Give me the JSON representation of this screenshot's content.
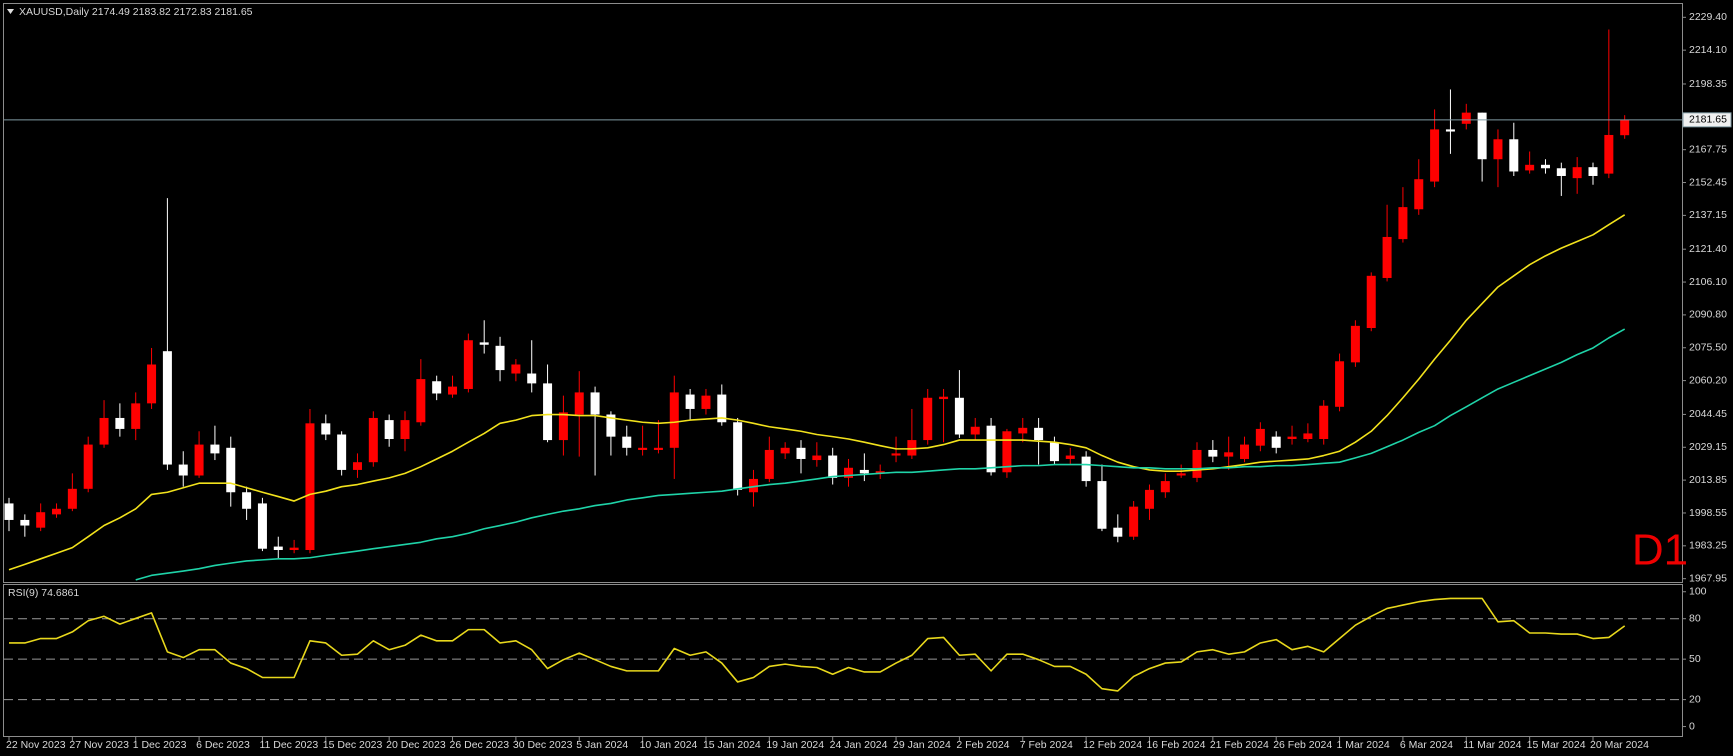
{
  "chart_data": [
    {
      "type": "candlestick",
      "title": "XAUUSD,Daily 2174.49 2183.82 2172.83 2181.65",
      "watermark": "D1",
      "categories": [
        "22 Nov 2023",
        null,
        null,
        null,
        "27 Nov 2023",
        null,
        null,
        null,
        "1 Dec 2023",
        null,
        null,
        null,
        "6 Dec 2023",
        null,
        null,
        null,
        "11 Dec 2023",
        null,
        null,
        null,
        "15 Dec 2023",
        null,
        null,
        null,
        "20 Dec 2023",
        null,
        null,
        null,
        "26 Dec 2023",
        null,
        null,
        null,
        "30 Dec 2023",
        null,
        null,
        null,
        "5 Jan 2024",
        null,
        null,
        null,
        "10 Jan 2024",
        null,
        null,
        null,
        "15 Jan 2024",
        null,
        null,
        null,
        "19 Jan 2024",
        null,
        null,
        null,
        "24 Jan 2024",
        null,
        null,
        null,
        "29 Jan 2024",
        null,
        null,
        null,
        "2 Feb 2024",
        null,
        null,
        null,
        "7 Feb 2024",
        null,
        null,
        null,
        "12 Feb 2024",
        null,
        null,
        null,
        "16 Feb 2024",
        null,
        null,
        null,
        "21 Feb 2024",
        null,
        null,
        null,
        "26 Feb 2024",
        null,
        null,
        null,
        "1 Mar 2024",
        null,
        null,
        null,
        "6 Mar 2024",
        null,
        null,
        null,
        "11 Mar 2024",
        null,
        null,
        null,
        "15 Mar 2024",
        null,
        null,
        null,
        "20 Mar 2024",
        null,
        null
      ],
      "open": [
        2003.0,
        1995.3,
        1991.7,
        1997.9,
        2000.5,
        2009.8,
        2030.4,
        2042.8,
        2037.7,
        2049.6,
        2073.9,
        2021.1,
        2016.0,
        2030.4,
        2028.9,
        2008.2,
        2003.0,
        1982.9,
        1981.3,
        1981.3,
        2040.3,
        2035.1,
        2018.6,
        2022.2,
        2041.8,
        2033.0,
        2040.8,
        2059.9,
        2053.7,
        2056.3,
        2078.0,
        2076.4,
        2063.5,
        2063.5,
        2058.9,
        2032.5,
        2044.4,
        2054.7,
        2044.4,
        2034.1,
        2027.9,
        2027.9,
        2028.9,
        2053.7,
        2047.0,
        2053.7,
        2040.8,
        2008.2,
        2014.4,
        2026.3,
        2028.9,
        2023.2,
        2025.3,
        2014.9,
        2018.6,
        2017.0,
        2025.3,
        2025.3,
        2032.5,
        2051.6,
        2052.2,
        2035.1,
        2039.2,
        2017.5,
        2035.6,
        2038.2,
        2031.5,
        2023.7,
        2024.8,
        2013.4,
        1991.7,
        1987.5,
        2000.5,
        2008.2,
        2016.0,
        2014.9,
        2027.9,
        2024.8,
        2023.7,
        2029.9,
        2034.1,
        2033.0,
        2033.0,
        2033.0,
        2048.0,
        2068.7,
        2084.7,
        2108.0,
        2126.1,
        2140.0,
        2152.9,
        2177.2,
        2179.8,
        2185.0,
        2163.3,
        2172.6,
        2158.1,
        2160.7,
        2159.1,
        2154.5,
        2159.6,
        2156.6,
        2174.49
      ],
      "high": [
        2005.6,
        1997.9,
        2003.0,
        2003.0,
        2017.0,
        2034.1,
        2051.1,
        2049.6,
        2054.7,
        2075.4,
        2145.2,
        2027.3,
        2036.6,
        2039.2,
        2034.1,
        2010.8,
        2005.6,
        1987.5,
        1986.0,
        2047.0,
        2044.4,
        2036.6,
        2026.3,
        2045.9,
        2044.4,
        2045.9,
        2070.2,
        2062.5,
        2062.5,
        2082.1,
        2088.3,
        2080.6,
        2070.2,
        2079.0,
        2067.7,
        2053.2,
        2064.6,
        2057.4,
        2045.9,
        2039.2,
        2039.2,
        2041.8,
        2062.5,
        2056.3,
        2056.3,
        2058.4,
        2042.8,
        2018.6,
        2034.1,
        2031.5,
        2032.5,
        2031.5,
        2028.9,
        2023.7,
        2026.3,
        2021.1,
        2034.1,
        2047.0,
        2056.3,
        2056.3,
        2065.1,
        2042.8,
        2042.8,
        2037.7,
        2042.8,
        2042.8,
        2034.1,
        2028.9,
        2027.3,
        2021.1,
        1997.9,
        2004.1,
        2011.8,
        2017.0,
        2021.1,
        2031.5,
        2032.5,
        2034.1,
        2034.1,
        2040.8,
        2036.6,
        2039.2,
        2040.3,
        2051.1,
        2072.8,
        2088.3,
        2110.6,
        2142.1,
        2150.3,
        2163.3,
        2186.5,
        2195.8,
        2189.1,
        2185.0,
        2177.2,
        2180.3,
        2166.9,
        2163.3,
        2161.7,
        2164.3,
        2161.7,
        2223.7,
        2183.82
      ],
      "low": [
        1990.1,
        1987.5,
        1990.1,
        1996.3,
        1999.4,
        2008.2,
        2028.9,
        2034.1,
        2032.5,
        2047.0,
        2018.6,
        2010.8,
        2014.9,
        2023.2,
        2001.5,
        1995.3,
        1980.8,
        1977.2,
        1979.8,
        1979.8,
        2032.5,
        2016.0,
        2014.9,
        2020.1,
        2029.4,
        2027.3,
        2039.2,
        2051.1,
        2052.2,
        2054.7,
        2072.8,
        2059.9,
        2059.9,
        2054.7,
        2031.5,
        2025.3,
        2024.8,
        2016.0,
        2025.3,
        2025.3,
        2025.3,
        2026.3,
        2014.4,
        2041.8,
        2044.4,
        2039.2,
        2006.7,
        2001.5,
        2012.9,
        2023.7,
        2017.0,
        2020.1,
        2011.8,
        2010.8,
        2013.4,
        2014.4,
        2022.2,
        2023.7,
        2030.4,
        2031.5,
        2033.5,
        2032.5,
        2016.0,
        2014.9,
        2031.5,
        2021.1,
        2021.1,
        2021.1,
        2010.8,
        1990.1,
        1984.9,
        1986.0,
        1995.3,
        2005.6,
        2014.9,
        2012.9,
        2022.2,
        2018.6,
        2022.2,
        2027.3,
        2026.3,
        2030.4,
        2031.5,
        2030.4,
        2045.9,
        2066.6,
        2083.2,
        2106.4,
        2124.5,
        2137.4,
        2150.3,
        2165.8,
        2177.2,
        2152.9,
        2150.3,
        2155.5,
        2156.6,
        2156.6,
        2146.2,
        2147.2,
        2151.4,
        2154.5,
        2172.83
      ],
      "close": [
        1995.3,
        1992.7,
        1998.9,
        2000.5,
        2009.8,
        2030.4,
        2042.8,
        2037.7,
        2049.6,
        2067.7,
        2021.1,
        2016.0,
        2030.4,
        2026.3,
        2008.2,
        2000.5,
        1981.9,
        1981.3,
        1982.4,
        2040.3,
        2035.1,
        2018.6,
        2022.2,
        2042.8,
        2033.0,
        2041.8,
        2060.9,
        2054.2,
        2057.4,
        2079.0,
        2076.9,
        2065.1,
        2067.7,
        2058.9,
        2032.5,
        2045.4,
        2054.7,
        2044.4,
        2034.1,
        2028.9,
        2028.9,
        2028.9,
        2054.7,
        2047.0,
        2053.2,
        2040.8,
        2009.3,
        2014.4,
        2027.9,
        2028.9,
        2023.7,
        2025.3,
        2014.9,
        2019.6,
        2017.0,
        2018.0,
        2026.3,
        2032.5,
        2052.2,
        2052.7,
        2035.1,
        2038.7,
        2017.5,
        2036.6,
        2038.2,
        2032.5,
        2022.7,
        2025.3,
        2013.4,
        1991.2,
        1987.5,
        2001.5,
        2009.3,
        2013.4,
        2017.0,
        2027.9,
        2024.8,
        2026.8,
        2030.4,
        2037.7,
        2028.9,
        2034.1,
        2035.6,
        2048.5,
        2069.2,
        2085.7,
        2109.0,
        2127.1,
        2141.0,
        2154.0,
        2177.2,
        2176.2,
        2185.0,
        2163.3,
        2172.6,
        2157.6,
        2160.7,
        2159.1,
        2155.5,
        2159.6,
        2155.5,
        2174.6,
        2181.65
      ],
      "up_color": "#ff0000",
      "down_color": "#ffffff",
      "series": [
        {
          "color": "#f2e21c",
          "values": [
            1972.1,
            1974.6,
            1977.2,
            1979.8,
            1982.4,
            1987.5,
            1992.7,
            1996.3,
            2000.5,
            2007.2,
            2008.2,
            2010.3,
            2012.4,
            2012.4,
            2012.4,
            2010.3,
            2008.2,
            2006.2,
            2004.1,
            2007.2,
            2008.7,
            2010.8,
            2011.8,
            2013.4,
            2014.9,
            2017.0,
            2020.1,
            2023.7,
            2027.3,
            2031.5,
            2035.6,
            2040.3,
            2041.8,
            2043.9,
            2044.4,
            2044.4,
            2043.9,
            2043.9,
            2042.8,
            2041.8,
            2040.8,
            2040.3,
            2040.8,
            2041.8,
            2042.3,
            2042.8,
            2041.8,
            2040.3,
            2038.7,
            2037.7,
            2036.6,
            2035.1,
            2034.1,
            2033.0,
            2031.5,
            2029.9,
            2028.4,
            2028.4,
            2028.9,
            2030.4,
            2032.5,
            2032.5,
            2032.5,
            2032.5,
            2032.5,
            2032.0,
            2031.5,
            2030.4,
            2028.9,
            2025.3,
            2022.2,
            2020.1,
            2018.6,
            2018.0,
            2018.0,
            2018.6,
            2019.1,
            2020.1,
            2021.1,
            2022.2,
            2022.7,
            2023.2,
            2023.7,
            2025.3,
            2027.3,
            2031.5,
            2036.6,
            2043.9,
            2052.2,
            2060.9,
            2070.2,
            2079.0,
            2088.3,
            2096.1,
            2103.8,
            2109.0,
            2114.2,
            2118.3,
            2121.9,
            2125.0,
            2128.1,
            2132.8,
            2137.4
          ]
        },
        {
          "color": "#1fd3a8",
          "values": [
            null,
            null,
            null,
            null,
            null,
            null,
            null,
            null,
            1967.4,
            1969.5,
            1970.5,
            1971.5,
            1972.6,
            1974.1,
            1975.2,
            1976.2,
            1976.7,
            1977.2,
            1977.2,
            1977.7,
            1978.8,
            1979.8,
            1980.8,
            1981.9,
            1982.9,
            1983.9,
            1984.9,
            1986.5,
            1987.5,
            1989.1,
            1991.2,
            1992.7,
            1994.3,
            1996.3,
            1997.9,
            1999.4,
            2000.5,
            2002.0,
            2003.0,
            2004.6,
            2005.6,
            2006.7,
            2007.2,
            2007.7,
            2008.2,
            2008.7,
            2009.8,
            2010.8,
            2011.8,
            2012.4,
            2013.4,
            2014.4,
            2015.5,
            2016.0,
            2016.5,
            2017.0,
            2017.5,
            2017.5,
            2018.0,
            2018.6,
            2019.1,
            2019.1,
            2019.6,
            2020.1,
            2020.6,
            2020.6,
            2021.1,
            2021.1,
            2021.1,
            2020.6,
            2020.1,
            2019.6,
            2019.6,
            2019.1,
            2019.1,
            2019.1,
            2019.6,
            2019.6,
            2020.1,
            2020.1,
            2020.6,
            2020.6,
            2021.1,
            2021.7,
            2022.2,
            2024.2,
            2026.3,
            2029.4,
            2032.5,
            2036.1,
            2039.2,
            2043.9,
            2048.0,
            2052.2,
            2056.3,
            2059.4,
            2062.5,
            2065.6,
            2068.7,
            2072.3,
            2075.4,
            2080.1,
            2084.2
          ]
        }
      ],
      "last_price": 2181.65,
      "ylim": [
        1966.4,
        2235.6
      ],
      "yticks": [
        1967.95,
        1983.25,
        1998.55,
        2013.85,
        2029.15,
        2044.45,
        {
          "value": 2060.2,
          "label": "2060.20"
        },
        {
          "value": 2075.5,
          "label": "2075.50"
        },
        {
          "value": 2090.8,
          "label": "2090.80"
        },
        {
          "value": 2106.1,
          "label": "2106.10"
        },
        {
          "value": 2121.4,
          "label": "2121.40"
        },
        2137.15,
        2152.45,
        2167.75,
        2198.35,
        {
          "value": 2214.1,
          "label": "2214.10"
        },
        {
          "value": 2229.4,
          "label": "2229.40"
        }
      ],
      "grid": false
    },
    {
      "type": "line",
      "title": "RSI(9) 74.6861",
      "series": [
        {
          "color": "#e8d81c",
          "values": [
            62.0,
            62.0,
            65.3,
            65.3,
            70.2,
            78.5,
            81.8,
            76.0,
            80.2,
            84.3,
            55.4,
            51.2,
            57.0,
            57.0,
            47.1,
            43.0,
            36.4,
            36.4,
            36.4,
            63.6,
            62.0,
            52.9,
            53.7,
            63.6,
            57.0,
            60.3,
            67.8,
            63.6,
            63.6,
            71.9,
            71.9,
            62.0,
            63.6,
            57.0,
            43.0,
            49.6,
            54.5,
            49.6,
            44.6,
            41.3,
            41.3,
            41.3,
            57.9,
            52.9,
            55.4,
            47.1,
            33.1,
            36.4,
            44.6,
            46.3,
            44.6,
            43.8,
            38.8,
            43.8,
            40.5,
            40.5,
            47.1,
            52.9,
            65.3,
            66.1,
            52.9,
            53.7,
            41.3,
            53.7,
            53.7,
            49.6,
            44.6,
            44.6,
            38.8,
            28.1,
            26.4,
            37.2,
            43.0,
            47.1,
            47.9,
            55.4,
            57.0,
            53.7,
            55.4,
            62.0,
            64.5,
            57.0,
            59.5,
            55.4,
            65.3,
            75.2,
            81.8,
            87.6,
            90.1,
            92.6,
            94.2,
            95.0,
            95.0,
            95.0,
            77.7,
            78.5,
            69.4,
            69.4,
            68.6,
            68.6,
            65.3,
            66.1,
            74.7
          ]
        }
      ],
      "ylim": [
        -7,
        105
      ],
      "yticks": [
        0,
        20,
        50,
        80,
        100
      ],
      "levels": [
        20,
        50,
        80
      ]
    }
  ]
}
